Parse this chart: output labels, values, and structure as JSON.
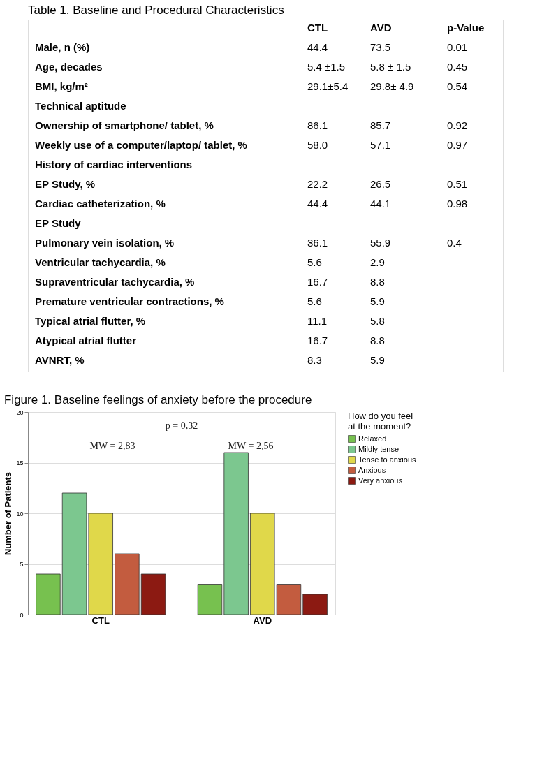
{
  "chart_data": [
    {
      "type": "other",
      "title": "Table 1. Baseline and Procedural Characteristics",
      "annotations": [
        null,
        "CTL",
        "AVD",
        "p-Value",
        "Male, n (%)",
        "44.4",
        "73.5",
        "0.01",
        "Age, decades",
        "5.4 ±1.5",
        "5.8 ± 1.5",
        "0.45",
        "BMI, kg/m²",
        "29.1±5.4",
        "29.8± 4.9",
        "0.54",
        "Technical aptitude",
        null,
        null,
        null,
        "Ownership of smartphone/ tablet, %",
        "86.1",
        "85.7",
        "0.92",
        "Weekly use of a computer/laptop/ tablet, %",
        "58.0",
        "57.1",
        "0.97",
        "History of cardiac interventions",
        null,
        null,
        null,
        "EP Study, %",
        "22.2",
        "26.5",
        "0.51",
        "Cardiac catheterization, %",
        "44.4",
        "44.1",
        "0.98",
        "EP Study",
        null,
        null,
        null,
        "Pulmonary vein isolation, %",
        "36.1",
        "55.9",
        "0.4",
        "Ventricular tachycardia, %",
        "5.6",
        "2.9",
        null,
        "Supraventricular tachycardia, %",
        "16.7",
        "8.8",
        null,
        "Premature ventricular contractions, %",
        "5.6",
        "5.9",
        null,
        "Typical atrial flutter, %",
        "11.1",
        "5.8",
        null,
        "Atypical atrial flutter",
        "16.7",
        "8.8",
        null,
        "AVNRT, %",
        "8.3",
        "5.9",
        null
      ]
    },
    {
      "type": "bar",
      "title": "Figure 1. Baseline feelings of anxiety before the procedure",
      "ylabel": "Number of Patients",
      "legend_title": "How do you feel at the moment?",
      "categories": [
        "CTL",
        "AVD"
      ],
      "series": [
        {
          "name": "Relaxed",
          "color": "#77c14f",
          "values": [
            4,
            3
          ]
        },
        {
          "name": "Mildly tense",
          "color": "#7cc78f",
          "values": [
            12,
            16
          ]
        },
        {
          "name": "Tense to anxious",
          "color": "#e0d84a",
          "values": [
            10,
            10
          ]
        },
        {
          "name": "Anxious",
          "color": "#c35c3f",
          "values": [
            6,
            3
          ]
        },
        {
          "name": "Very anxious",
          "color": "#8c1a12",
          "values": [
            4,
            2
          ]
        }
      ],
      "ylim": [
        0,
        20
      ],
      "yticks": [
        0,
        5,
        10,
        15,
        20
      ],
      "grid": "y",
      "legend": "top right",
      "annotations": [
        "p = 0,32",
        "MW = 2,83",
        "MW = 2,56"
      ]
    }
  ]
}
